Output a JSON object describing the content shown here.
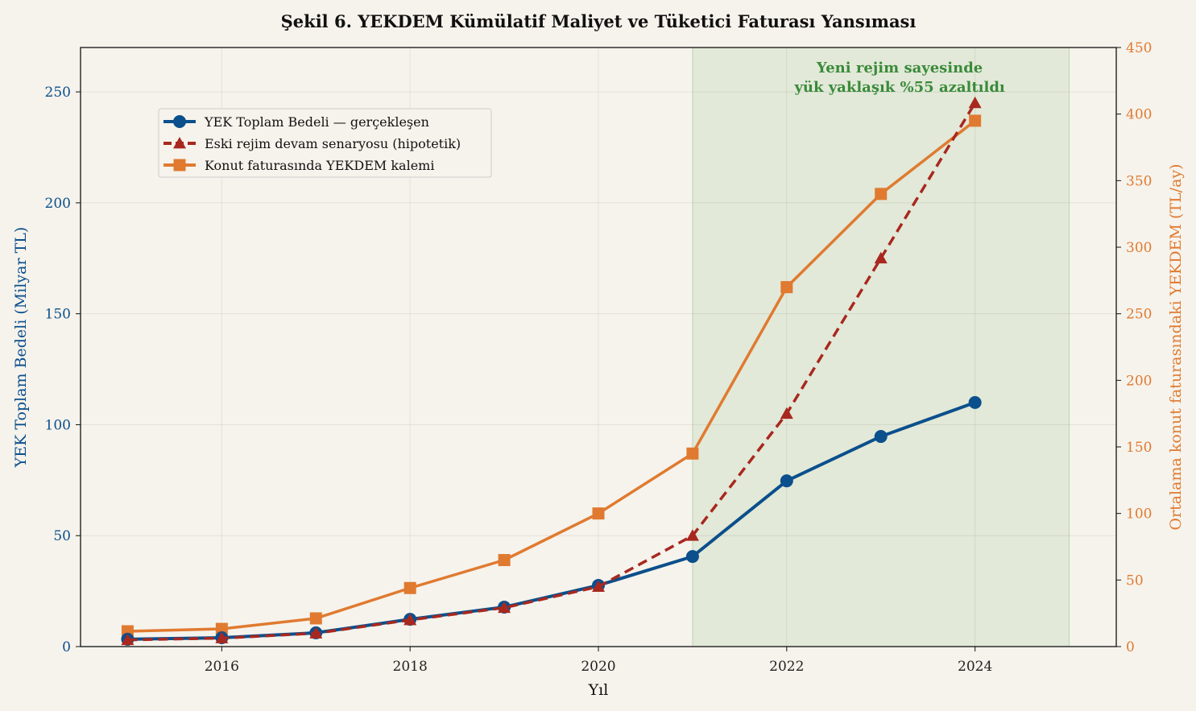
{
  "chart_data": {
    "type": "line",
    "title": "Şekil 6. YEKDEM Kümülatif Maliyet ve Tüketici Faturası Yansıması",
    "xlabel": "Yıl",
    "ylabel": "YEK Toplam Bedeli (Milyar TL)",
    "ylabel_right": "Ortalama konut faturasındaki YEKDEM (TL/ay)",
    "xlim": [
      2014.5,
      2025.5
    ],
    "ylim": [
      0,
      270
    ],
    "ylim_right": [
      0,
      450
    ],
    "xticks": [
      "2016",
      "2018",
      "2020",
      "2022",
      "2024"
    ],
    "yticks": [
      "0",
      "50",
      "100",
      "150",
      "200",
      "250"
    ],
    "yticks_right": [
      "0",
      "50",
      "100",
      "150",
      "200",
      "250",
      "300",
      "350",
      "400",
      "450"
    ],
    "grid": true,
    "legend_placement": "upper-left",
    "x": [
      2015,
      2016,
      2017,
      2018,
      2019,
      2020,
      2021,
      2022,
      2023,
      2024
    ],
    "series": [
      {
        "name": "YEK Toplam Bedeli — gerçekleşen",
        "axis": "left",
        "color": "#0b4f8c",
        "marker": "circle",
        "style": "solid",
        "values": [
          3.3,
          4,
          6.2,
          12.3,
          17.8,
          27.6,
          40.6,
          74.7,
          94.7,
          110
        ]
      },
      {
        "name": "Eski rejim devam senaryosu (hipotetik)",
        "axis": "left",
        "color": "#a8281f",
        "marker": "triangle",
        "style": "dashed",
        "values": [
          3,
          3.8,
          6,
          12,
          17.5,
          27,
          50,
          105,
          175,
          245
        ]
      },
      {
        "name": "Konut faturasında YEKDEM kalemi",
        "axis": "right",
        "color": "#e07a30",
        "marker": "square",
        "style": "solid",
        "values": [
          11.5,
          13.3,
          21.2,
          44,
          65,
          100,
          145,
          270,
          340,
          395
        ]
      }
    ],
    "shaded_region": {
      "x": [
        2021,
        2025
      ],
      "color": "#d5e3cc"
    },
    "annotation": {
      "lines": [
        "Yeni rejim sayesinde",
        "yük yaklaşık %55 azaltıldı"
      ],
      "x": 2023.2,
      "color": "#3a8a3a"
    },
    "colors": {
      "left_axis": "#0b4f8c",
      "right_axis": "#e07a30",
      "background": "#f6f3ec"
    }
  }
}
